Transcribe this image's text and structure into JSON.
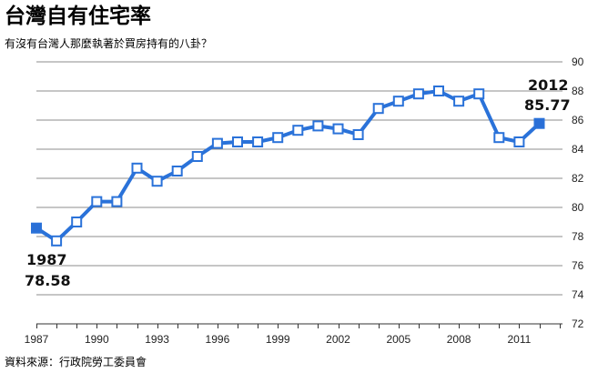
{
  "title": "台灣自有住宅率",
  "subtitle": "有沒有台灣人那麼執著於買房持有的八卦？",
  "source": "資料來源：行政院勞工委員會",
  "colors": {
    "line": "#2a72d9",
    "marker_fill_open": "#ffffff",
    "marker_fill_highlight": "#2a6fd6",
    "grid": "#8c8c8c"
  },
  "chart_data": {
    "type": "line",
    "title": "台灣自有住宅率",
    "subtitle": "有沒有台灣人那麼執著於買房持有的八卦？",
    "xlabel": "",
    "ylabel": "",
    "x_ticks": [
      "1987",
      "1990",
      "1993",
      "1996",
      "1999",
      "2002",
      "2005",
      "2008",
      "2011"
    ],
    "y_ticks": [
      "72",
      "74",
      "76",
      "78",
      "80",
      "82",
      "84",
      "86",
      "88",
      "90"
    ],
    "ylim": [
      72,
      90
    ],
    "xlim": [
      1987,
      2012.5
    ],
    "y_axis_position": "right",
    "grid": true,
    "legend": "none",
    "x": [
      1987,
      1988,
      1989,
      1990,
      1991,
      1992,
      1993,
      1994,
      1995,
      1996,
      1997,
      1998,
      1999,
      2000,
      2001,
      2002,
      2003,
      2004,
      2005,
      2006,
      2007,
      2008,
      2009,
      2010,
      2011,
      2012
    ],
    "values": [
      78.58,
      77.7,
      79.0,
      80.4,
      80.4,
      82.7,
      81.8,
      82.5,
      83.5,
      84.4,
      84.5,
      84.5,
      84.8,
      85.3,
      85.6,
      85.4,
      85.0,
      86.8,
      87.3,
      87.8,
      88.0,
      87.3,
      87.8,
      84.8,
      84.5,
      85.77
    ],
    "annotations": [
      {
        "year": "1987",
        "value": "78.58"
      },
      {
        "year": "2012",
        "value": "85.77"
      }
    ]
  }
}
